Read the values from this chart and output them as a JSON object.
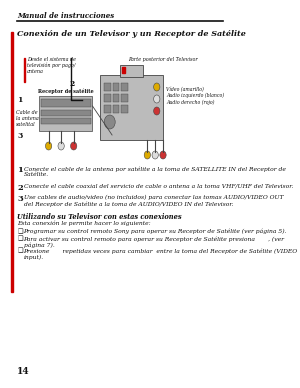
{
  "bg_color": "#ffffff",
  "header_text": "Manual de instrucciones",
  "title": "Conexión de un Televisor y un Receptor de Satélite",
  "red_bar_color": "#cc0000",
  "line_color": "#111111",
  "diagram_label1": "Desde el sistema de\ntelevisión por pago/\nantena",
  "diagram_label2": "Parte posterior del Televisor",
  "diagram_label_receptor": "Receptor de satélite",
  "diagram_label_cable": "Cable de\nla antena\nsatelital",
  "diagram_label_video": "Vídeo (amarillo)\nAudio izquierdo (blanco)\nAudio derecho (rojo)",
  "step1_num": "1",
  "step1_text": "Conecte el cable de la antena por satélite a la toma de SATELLITE IN del Receptor de\nSatélite.",
  "step2_num": "2",
  "step2_text": "Conecte el cable coaxial del servicio de cable o antena a la toma VHF/UHF del Televisor.",
  "step3_num": "3",
  "step3_text": "Use cables de audio/video (no incluidos) para conectar las tomas AUDIO/VIDEO OUT\ndel Receptor de Satélite a la toma de AUDIO/VIDEO IN del Televisor.",
  "subsection_title": "Utilizando su Televisor con estas conexiones",
  "subsection_intro": "Esta conexión le permite hacer lo siguiente:",
  "bullet1": "Programar su control remoto Sony para operar su Receptor de Satélite (ver página 5).",
  "bullet2": "Para activar su control remoto para operar su Receptor de Satélite presiona       , (ver\npágina 7).",
  "bullet3": "Presione       repetidas veces para cambiar  entre la toma del Receptor de Satélite (VIDEO\ninput).",
  "page_num": "14",
  "dark_color": "#111111",
  "gray_dark": "#444444",
  "gray_mid": "#888888",
  "gray_light": "#bbbbbb",
  "gray_bg": "#d0d0d0"
}
